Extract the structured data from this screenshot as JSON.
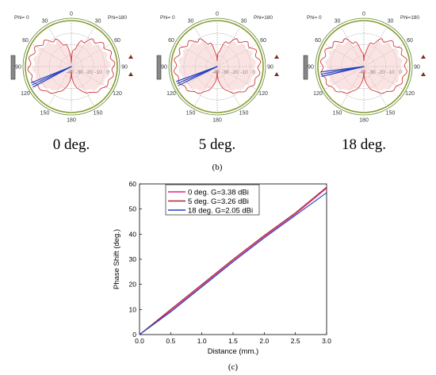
{
  "polar_common": {
    "phi_left_label": "Phi= 0",
    "phi_right_label": "Phi=180",
    "angle_ticks": [
      "0",
      "30",
      "60",
      "90",
      "120",
      "150",
      "180",
      "150",
      "120",
      "90",
      "60",
      "30"
    ],
    "radial_ticks": [
      "-40",
      "-30",
      "-20",
      "-10",
      "0"
    ]
  },
  "polar_plots": [
    {
      "caption": "0 deg.",
      "beam_angle": 115
    },
    {
      "caption": "5 deg.",
      "beam_angle": 113
    },
    {
      "caption": "18 deg.",
      "beam_angle": 100
    }
  ],
  "label_b": "(b)",
  "label_c": "(c)",
  "colors": {
    "red": "#d02020",
    "dark_red": "#a0302a",
    "blue": "#2040c0",
    "magenta": "#e02080",
    "circle": "#8a9a30"
  },
  "chart_data": {
    "type": "line",
    "xlabel": "Distance (mm.)",
    "ylabel": "Phase Shift (deg.)",
    "xlim": [
      0,
      3.0
    ],
    "ylim": [
      0,
      60
    ],
    "xticks": [
      "0.0",
      "0.5",
      "1.0",
      "1.5",
      "2.0",
      "2.5",
      "3.0"
    ],
    "yticks": [
      "0",
      "10",
      "20",
      "30",
      "40",
      "50",
      "60"
    ],
    "legend_position": "top-left",
    "series": [
      {
        "name": "0 deg. G=3.38 dBi",
        "color": "#e02080",
        "x": [
          0,
          0.5,
          1.0,
          1.5,
          2.0,
          2.5,
          3.0
        ],
        "y": [
          0,
          9.5,
          19.5,
          29.5,
          39,
          48,
          58.3
        ]
      },
      {
        "name": "5 deg. G=3.26 dBi",
        "color": "#a0302a",
        "x": [
          0,
          0.5,
          1.0,
          1.5,
          2.0,
          2.5,
          3.0
        ],
        "y": [
          0,
          10,
          20,
          30,
          39.5,
          48.5,
          58.7
        ]
      },
      {
        "name": "18 deg. G=2.05 dBi",
        "color": "#2040c0",
        "x": [
          0,
          0.5,
          1.0,
          1.5,
          2.0,
          2.5,
          3.0
        ],
        "y": [
          0,
          9,
          19,
          29,
          38.5,
          47.5,
          56.5
        ]
      }
    ]
  }
}
